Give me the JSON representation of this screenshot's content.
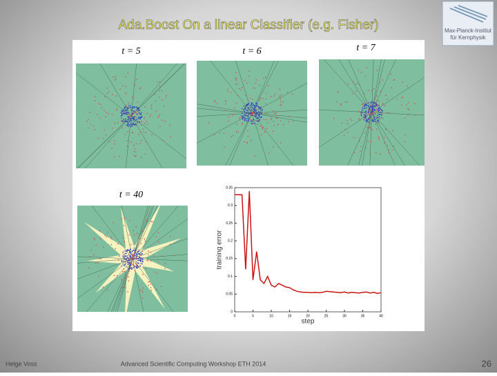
{
  "header": {
    "title": "Ada.Boost On a linear Classifier (e.g. Fisher)",
    "logo": [
      "Max-Planck-Institut",
      "für Kernphysik"
    ]
  },
  "panels": [
    {
      "label": "t = 5"
    },
    {
      "label": "t = 6"
    },
    {
      "label": "t = 7"
    },
    {
      "label": "t = 40"
    }
  ],
  "plot": {
    "type": "line",
    "xlabel": "step",
    "ylabel": "training error",
    "color": "#cc1111",
    "x": [
      0,
      1,
      2,
      3,
      4,
      5,
      6,
      7,
      8,
      9,
      10,
      11,
      12,
      13,
      14,
      15,
      16,
      17,
      18,
      19,
      20,
      21,
      22,
      23,
      24,
      25,
      26,
      27,
      28,
      29,
      30,
      31,
      32,
      33,
      34,
      35,
      36,
      37,
      38,
      39,
      40
    ],
    "values": [
      0.33,
      0.33,
      0.33,
      0.12,
      0.34,
      0.09,
      0.17,
      0.09,
      0.08,
      0.1,
      0.075,
      0.07,
      0.08,
      0.075,
      0.07,
      0.068,
      0.062,
      0.058,
      0.056,
      0.055,
      0.055,
      0.054,
      0.055,
      0.054,
      0.055,
      0.058,
      0.057,
      0.056,
      0.055,
      0.054,
      0.056,
      0.053,
      0.055,
      0.054,
      0.053,
      0.055,
      0.056,
      0.053,
      0.055,
      0.052,
      0.054
    ],
    "xlim": [
      0,
      40
    ],
    "ylim": [
      0,
      0.35
    ],
    "xticks": [
      0,
      5,
      10,
      15,
      20,
      25,
      30,
      35,
      40
    ],
    "yticks": [
      0,
      0.05,
      0.1,
      0.15,
      0.2,
      0.25,
      0.3,
      0.35
    ]
  },
  "footer": {
    "author": "Helge Voss",
    "event": "Advanced Scientific Computing Workshop ETH 2014",
    "page": "26"
  }
}
